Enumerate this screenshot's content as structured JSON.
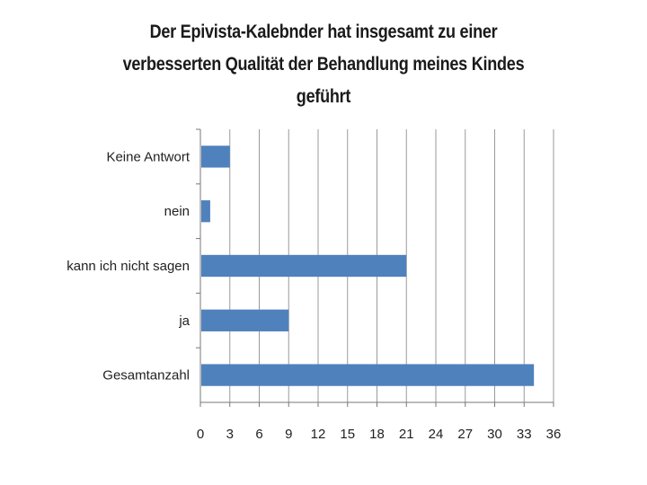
{
  "chart_data": {
    "type": "bar",
    "orientation": "horizontal",
    "title_lines": [
      "Der Epivista-Kalebnder hat insgesamt zu einer",
      "verbesserten Qualität der Behandlung meines Kindes",
      "geführt"
    ],
    "categories": [
      "Keine Antwort",
      "nein",
      "kann ich nicht sagen",
      "ja",
      "Gesamtanzahl"
    ],
    "values": [
      3,
      1,
      21,
      9,
      34
    ],
    "xlim": [
      0,
      36
    ],
    "xticks": [
      "0",
      "3",
      "6",
      "9",
      "12",
      "15",
      "18",
      "21",
      "24",
      "27",
      "30",
      "33",
      "36"
    ],
    "grid": "vertical",
    "bar_color": "#4f81bd",
    "legend": "none"
  }
}
